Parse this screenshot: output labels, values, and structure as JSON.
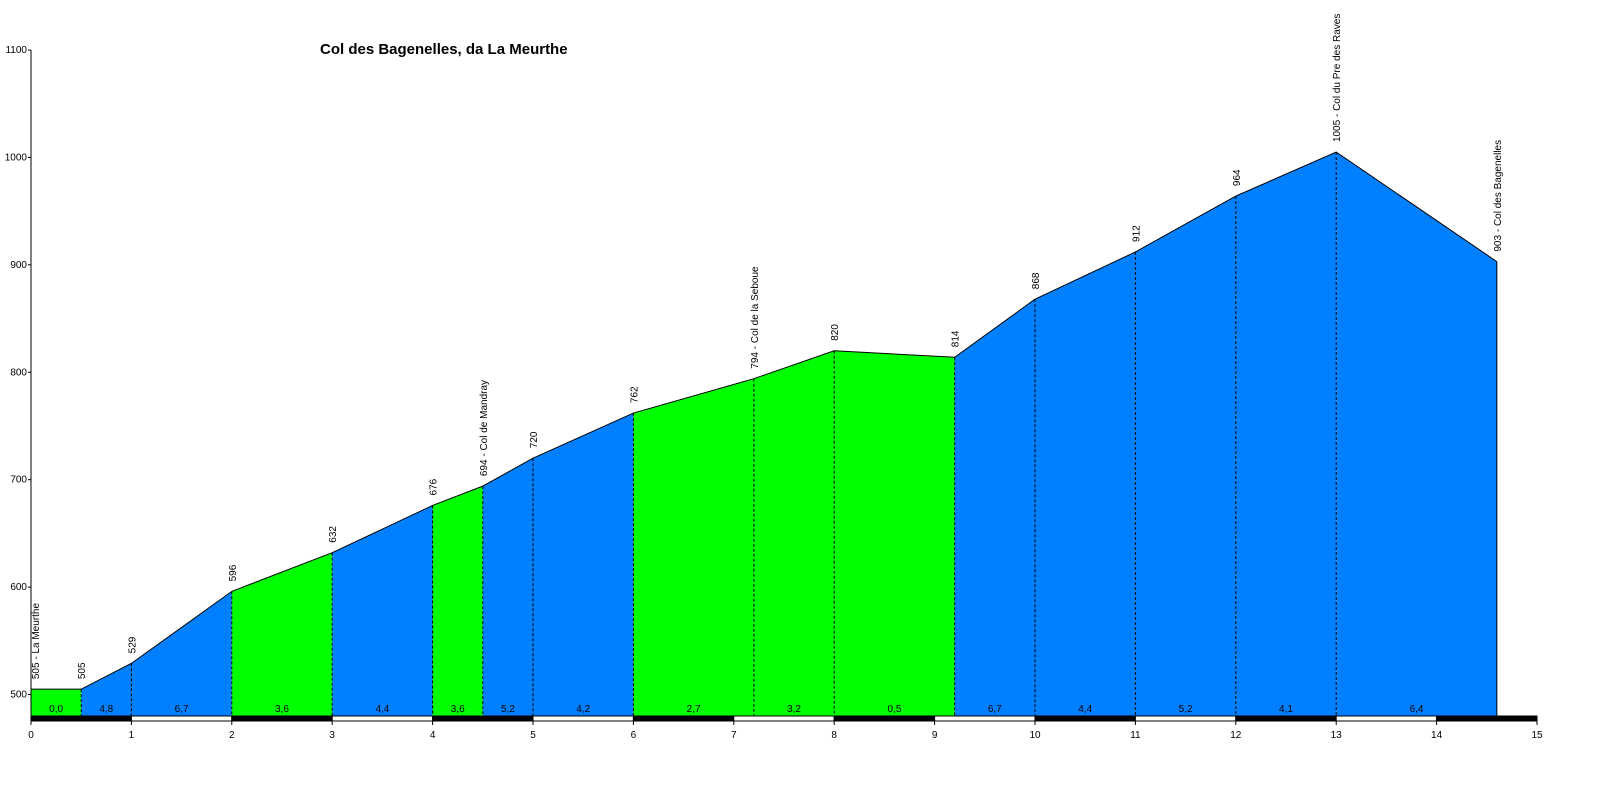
{
  "chart_data": {
    "type": "area",
    "title": "Col des Bagenelles, da La Meurthe",
    "xlabel": "",
    "ylabel": "",
    "xlim": [
      0,
      15
    ],
    "ylim": [
      480,
      1100
    ],
    "x_ticks": [
      "0",
      "1",
      "2",
      "3",
      "4",
      "5",
      "6",
      "7",
      "8",
      "9",
      "10",
      "11",
      "12",
      "13",
      "14",
      "15"
    ],
    "y_ticks": [
      "500",
      "600",
      "700",
      "800",
      "900",
      "1000",
      "1100"
    ],
    "grid": false,
    "colors": {
      "green": "#00ff00",
      "blue": "#0080ff",
      "axis": "#000000"
    },
    "profile": [
      {
        "x": 0.0,
        "y": 505
      },
      {
        "x": 0.5,
        "y": 505
      },
      {
        "x": 1.0,
        "y": 529
      },
      {
        "x": 2.0,
        "y": 596
      },
      {
        "x": 3.0,
        "y": 632
      },
      {
        "x": 4.0,
        "y": 676
      },
      {
        "x": 4.5,
        "y": 694
      },
      {
        "x": 5.0,
        "y": 720
      },
      {
        "x": 6.0,
        "y": 762
      },
      {
        "x": 7.2,
        "y": 794
      },
      {
        "x": 8.0,
        "y": 820
      },
      {
        "x": 9.2,
        "y": 814
      },
      {
        "x": 10.0,
        "y": 868
      },
      {
        "x": 11.0,
        "y": 912
      },
      {
        "x": 12.0,
        "y": 964
      },
      {
        "x": 13.0,
        "y": 1005
      },
      {
        "x": 14.6,
        "y": 903
      }
    ],
    "segments": [
      {
        "from": 0.0,
        "to": 0.5,
        "gradient": "0,0",
        "color": "green"
      },
      {
        "from": 0.5,
        "to": 1.0,
        "gradient": "4,8",
        "color": "blue"
      },
      {
        "from": 1.0,
        "to": 2.0,
        "gradient": "6,7",
        "color": "blue"
      },
      {
        "from": 2.0,
        "to": 3.0,
        "gradient": "3,6",
        "color": "green"
      },
      {
        "from": 3.0,
        "to": 4.0,
        "gradient": "4,4",
        "color": "blue"
      },
      {
        "from": 4.0,
        "to": 4.5,
        "gradient": "3,6",
        "color": "green"
      },
      {
        "from": 4.5,
        "to": 5.0,
        "gradient": "5,2",
        "color": "blue"
      },
      {
        "from": 5.0,
        "to": 6.0,
        "gradient": "4,2",
        "color": "blue"
      },
      {
        "from": 6.0,
        "to": 7.2,
        "gradient": "2,7",
        "color": "green"
      },
      {
        "from": 7.2,
        "to": 8.0,
        "gradient": "3,2",
        "color": "green"
      },
      {
        "from": 8.0,
        "to": 9.2,
        "gradient": "0,5",
        "color": "green"
      },
      {
        "from": 9.2,
        "to": 10.0,
        "gradient": "6,7",
        "color": "blue"
      },
      {
        "from": 10.0,
        "to": 11.0,
        "gradient": "4,4",
        "color": "blue"
      },
      {
        "from": 11.0,
        "to": 12.0,
        "gradient": "5,2",
        "color": "blue"
      },
      {
        "from": 12.0,
        "to": 13.0,
        "gradient": "4,1",
        "color": "blue"
      },
      {
        "from": 13.0,
        "to": 14.6,
        "gradient": "6,4",
        "color": "blue"
      }
    ],
    "point_labels": [
      {
        "x": 0.0,
        "y": 505,
        "label": "505 - La Meurthe"
      },
      {
        "x": 0.5,
        "y": 505,
        "label": "505"
      },
      {
        "x": 1.0,
        "y": 529,
        "label": "529"
      },
      {
        "x": 2.0,
        "y": 596,
        "label": "596"
      },
      {
        "x": 3.0,
        "y": 632,
        "label": "632"
      },
      {
        "x": 4.0,
        "y": 676,
        "label": "676"
      },
      {
        "x": 4.5,
        "y": 694,
        "label": "694 - Col de Mandray"
      },
      {
        "x": 5.0,
        "y": 720,
        "label": "720"
      },
      {
        "x": 6.0,
        "y": 762,
        "label": "762"
      },
      {
        "x": 7.2,
        "y": 794,
        "label": "794 - Col de la Seboue"
      },
      {
        "x": 8.0,
        "y": 820,
        "label": "820"
      },
      {
        "x": 9.2,
        "y": 814,
        "label": "814"
      },
      {
        "x": 10.0,
        "y": 868,
        "label": "868"
      },
      {
        "x": 11.0,
        "y": 912,
        "label": "912"
      },
      {
        "x": 12.0,
        "y": 964,
        "label": "964"
      },
      {
        "x": 13.0,
        "y": 1005,
        "label": "1005 - Col du Pre des Raves"
      },
      {
        "x": 14.6,
        "y": 903,
        "label": "903 - Col des Bagenelles"
      }
    ]
  }
}
